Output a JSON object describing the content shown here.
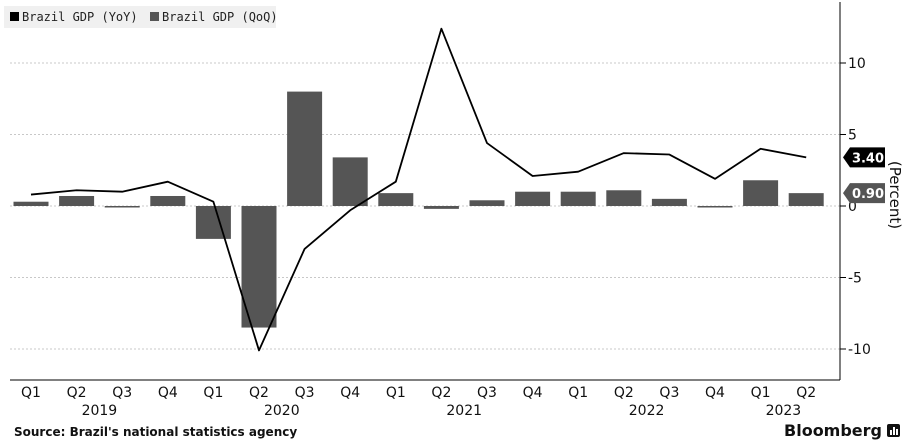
{
  "chart_data": {
    "type": "bar+line",
    "ylabel": "(Percent)",
    "ylim": [
      -12,
      14.5
    ],
    "yticks": [
      -10,
      -5,
      0,
      5,
      10
    ],
    "grid": true,
    "legend_position": "top-left",
    "legend": [
      "Brazil GDP (YoY)",
      "Brazil GDP (QoQ)"
    ],
    "categories": [
      "Q1",
      "Q2",
      "Q3",
      "Q4",
      "Q1",
      "Q2",
      "Q3",
      "Q4",
      "Q1",
      "Q2",
      "Q3",
      "Q4",
      "Q1",
      "Q2",
      "Q3",
      "Q4",
      "Q1",
      "Q2"
    ],
    "years": [
      {
        "label": "2019",
        "start": 0,
        "end": 3
      },
      {
        "label": "2020",
        "start": 4,
        "end": 7
      },
      {
        "label": "2021",
        "start": 8,
        "end": 11
      },
      {
        "label": "2022",
        "start": 12,
        "end": 15
      },
      {
        "label": "2023",
        "start": 16,
        "end": 17
      }
    ],
    "series": [
      {
        "name": "Brazil GDP (YoY)",
        "type": "line",
        "color": "#000000",
        "values": [
          0.8,
          1.1,
          1.0,
          1.7,
          0.3,
          -10.1,
          -3.0,
          -0.3,
          1.7,
          12.4,
          4.4,
          2.1,
          2.4,
          3.7,
          3.6,
          1.9,
          4.0,
          3.4
        ]
      },
      {
        "name": "Brazil GDP (QoQ)",
        "type": "bar",
        "color": "#555555",
        "values": [
          0.3,
          0.7,
          -0.1,
          0.7,
          -2.3,
          -8.5,
          8.0,
          3.4,
          0.9,
          -0.2,
          0.4,
          1.0,
          1.0,
          1.1,
          0.5,
          -0.1,
          1.8,
          0.9
        ]
      }
    ],
    "end_labels": [
      {
        "series": "Brazil GDP (YoY)",
        "text": "3.40",
        "value": 3.4,
        "bg": "#000000",
        "fg": "#ffffff"
      },
      {
        "series": "Brazil GDP (QoQ)",
        "text": "0.90",
        "value": 0.9,
        "bg": "#555555",
        "fg": "#ffffff"
      }
    ]
  },
  "source": "Source: Brazil's national statistics agency",
  "brand": "Bloomberg"
}
